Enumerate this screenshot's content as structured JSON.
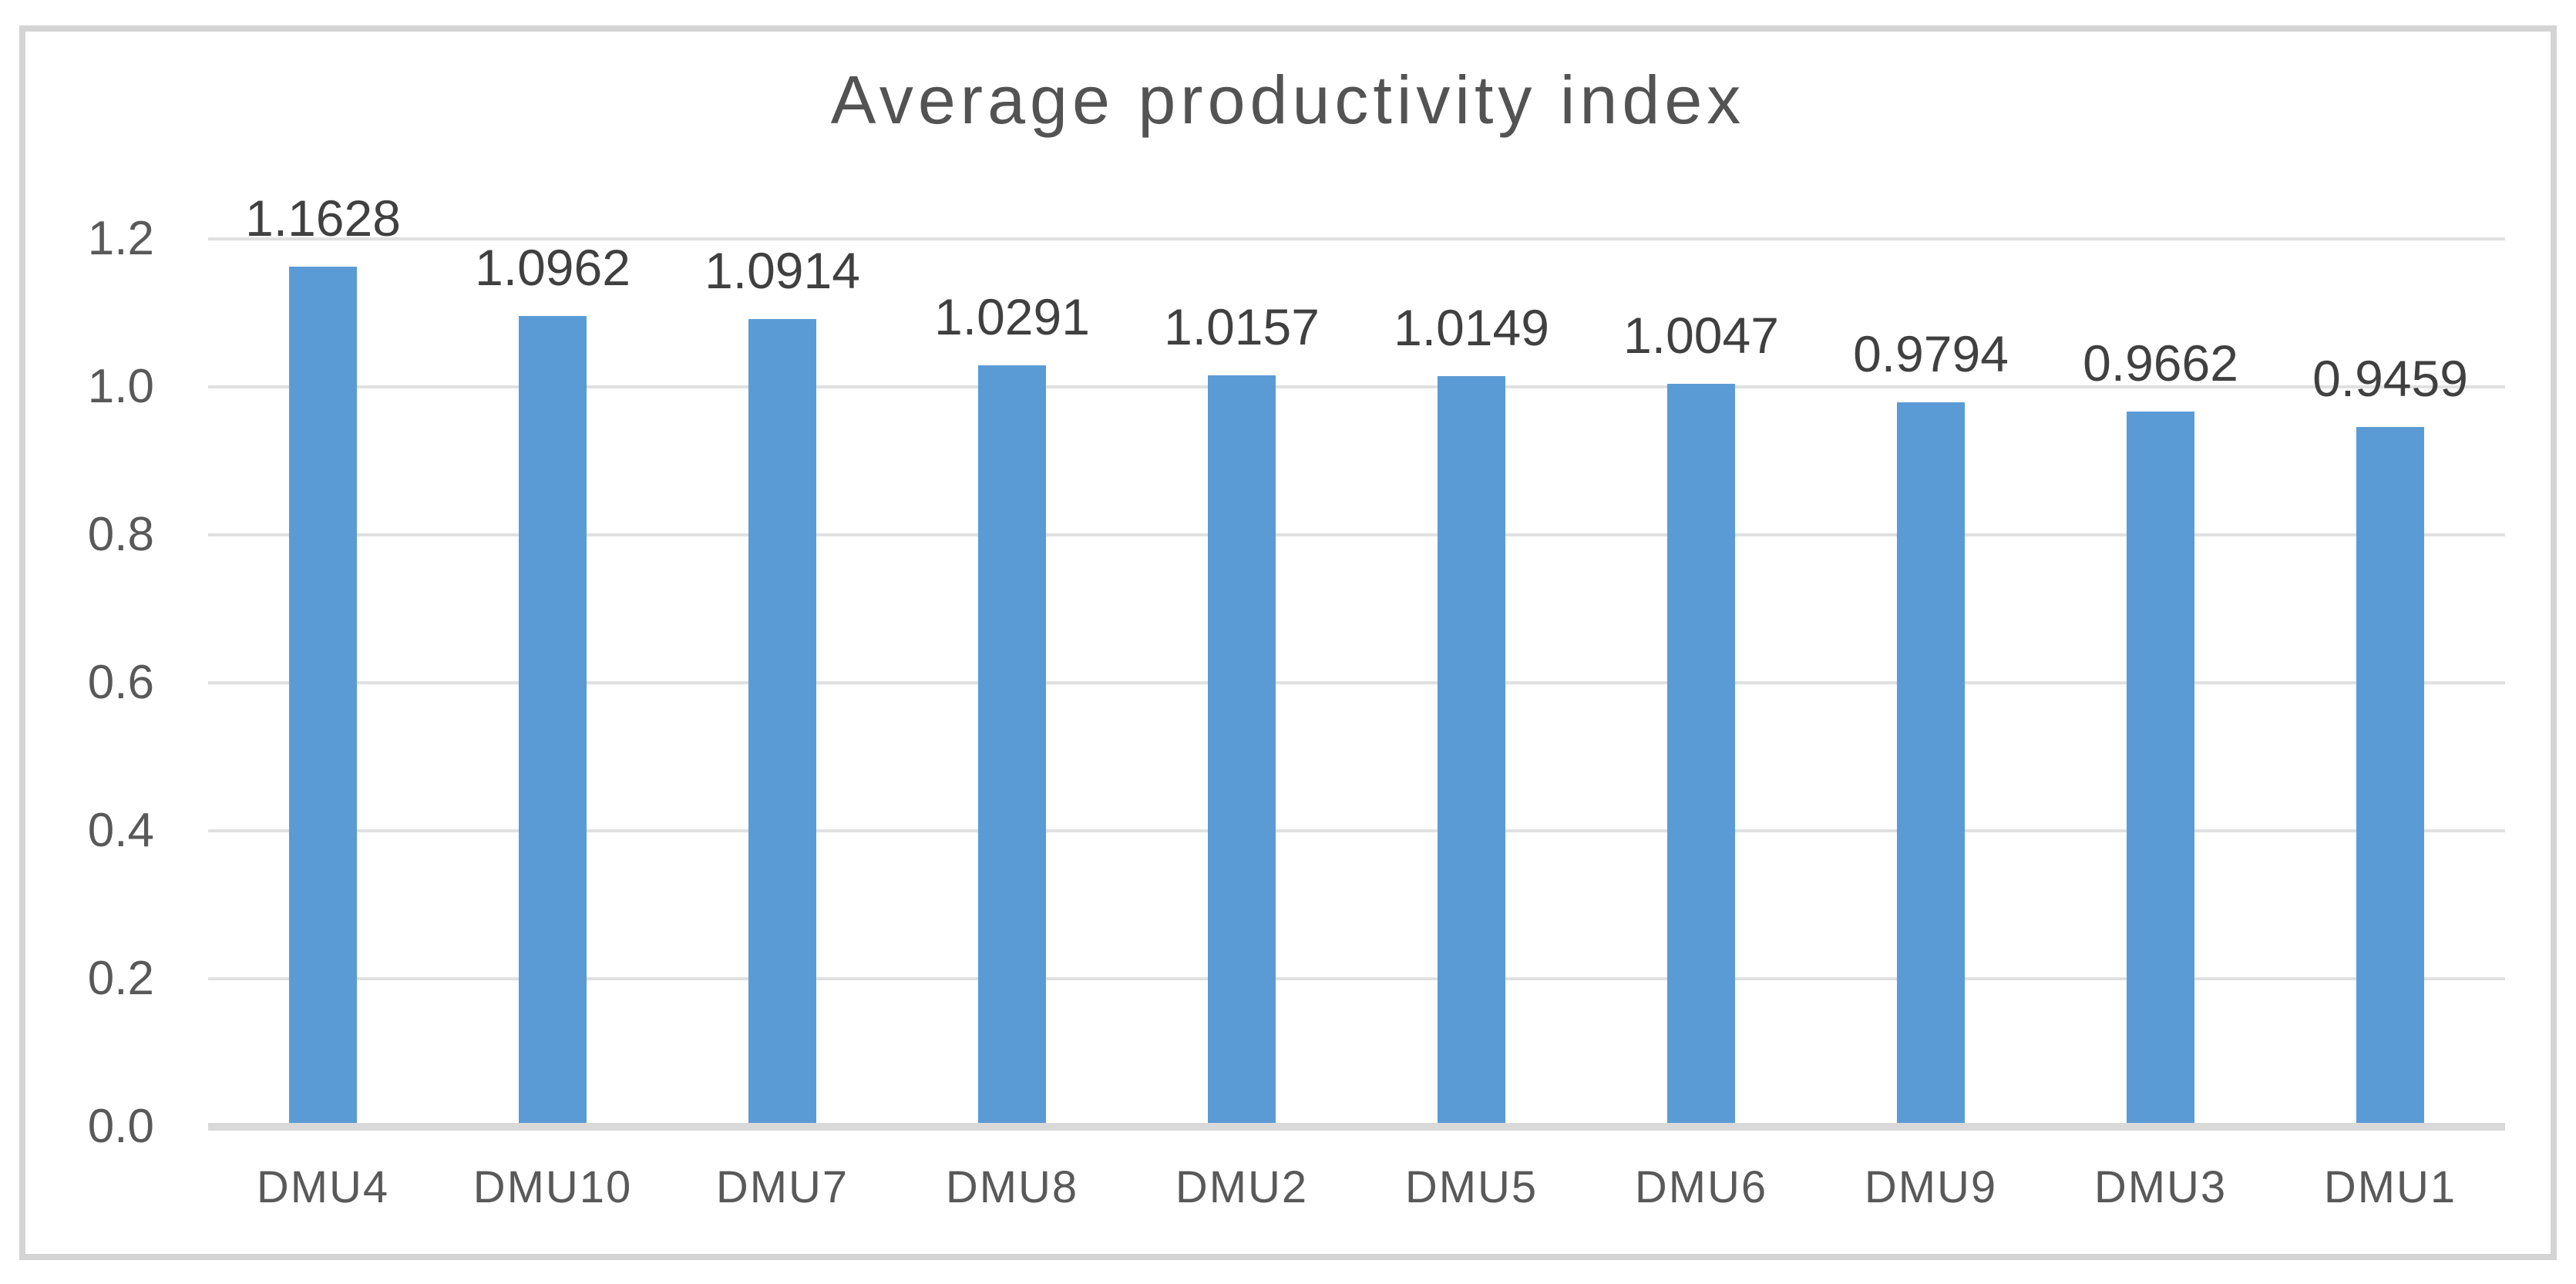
{
  "chart_data": {
    "type": "bar",
    "title": "Average productivity index",
    "categories": [
      "DMU4",
      "DMU10",
      "DMU7",
      "DMU8",
      "DMU2",
      "DMU5",
      "DMU6",
      "DMU9",
      "DMU3",
      "DMU1"
    ],
    "values": [
      1.1628,
      1.0962,
      1.0914,
      1.0291,
      1.0157,
      1.0149,
      1.0047,
      0.9794,
      0.9662,
      0.9459
    ],
    "data_labels": [
      "1.1628",
      "1.0962",
      "1.0914",
      "1.0291",
      "1.0157",
      "1.0149",
      "1.0047",
      "0.9794",
      "0.9662",
      "0.9459"
    ],
    "y_ticks": [
      "0.0",
      "0.2",
      "0.4",
      "0.6",
      "0.8",
      "1.0",
      "1.2"
    ],
    "ylim": [
      0.0,
      1.2
    ],
    "xlabel": "",
    "ylabel": "",
    "grid": true,
    "legend": false,
    "data_labels_shown": true,
    "bar_color": "#5b9bd5",
    "gridline_color": "#e0e0e0",
    "axis_line_color": "#d9d9d9",
    "frame_border_color": "#d4d4d4",
    "title_color": "#535353",
    "tick_label_color": "#595959",
    "data_label_color": "#404040"
  }
}
